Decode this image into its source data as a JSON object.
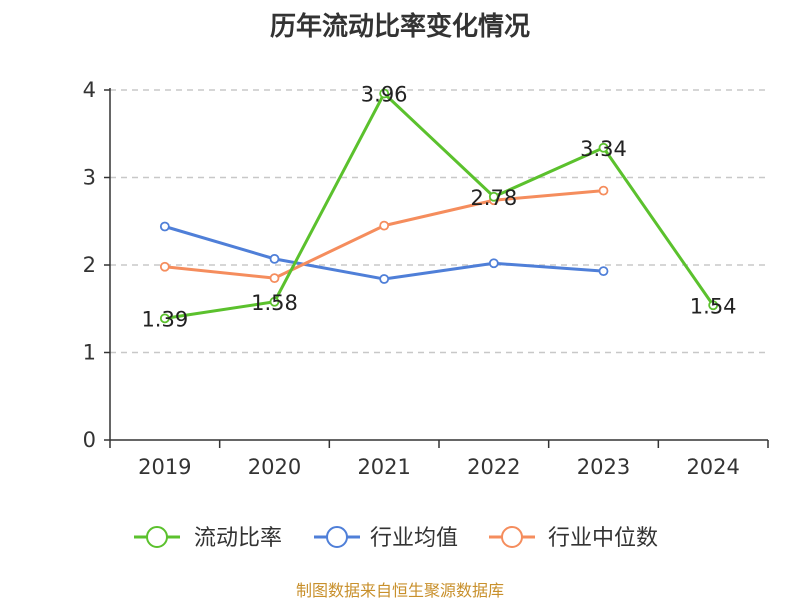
{
  "chart_data": {
    "type": "line",
    "title": "历年流动比率变化情况",
    "categories": [
      "2019",
      "2020",
      "2021",
      "2022",
      "2023",
      "2024"
    ],
    "y_ticks": [
      "0",
      "1",
      "2",
      "3",
      "4"
    ],
    "ylim": [
      0,
      4
    ],
    "grid": "horizontal-dashed",
    "legend_position": "bottom",
    "series": [
      {
        "name": "流动比率",
        "color": "#5bc12d",
        "values": [
          1.39,
          1.58,
          3.96,
          2.78,
          3.34,
          1.54
        ],
        "labels": [
          "1.39",
          "1.58",
          "3.96",
          "2.78",
          "3.34",
          "1.54"
        ]
      },
      {
        "name": "行业均值",
        "color": "#4f7fd8",
        "values": [
          2.44,
          2.07,
          1.84,
          2.02,
          1.93,
          null
        ]
      },
      {
        "name": "行业中位数",
        "color": "#f58d5d",
        "values": [
          1.98,
          1.85,
          2.45,
          2.74,
          2.85,
          null
        ]
      }
    ]
  },
  "source": "制图数据来自恒生聚源数据库"
}
